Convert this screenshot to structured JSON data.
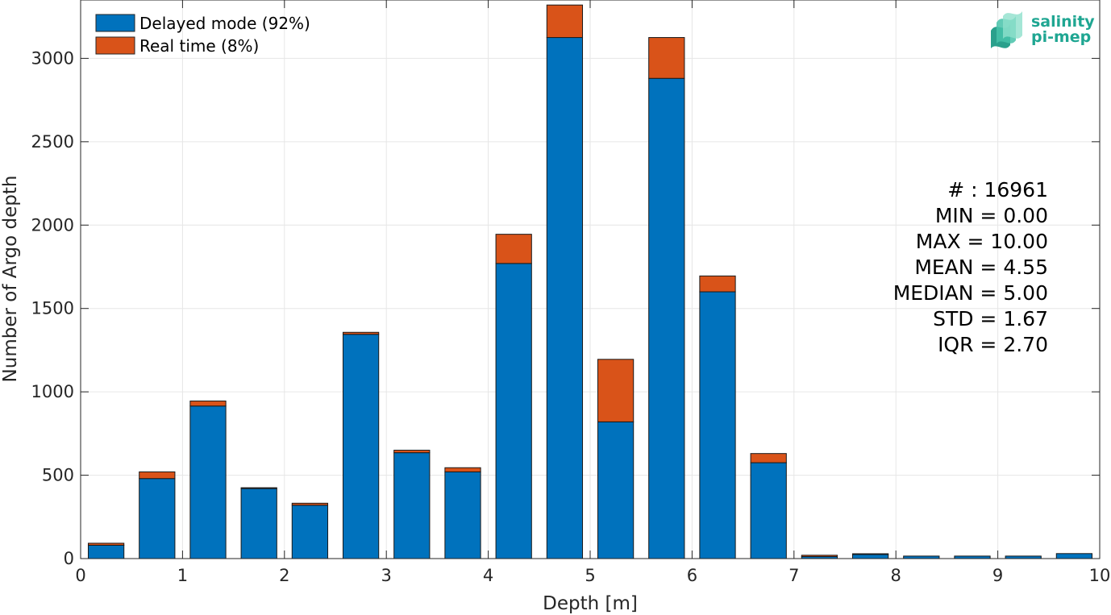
{
  "chart_data": {
    "type": "bar",
    "stacked": true,
    "xlabel": "Depth [m]",
    "ylabel": "Number of Argo depth",
    "xlim": [
      0,
      10
    ],
    "ylim": [
      0,
      3350
    ],
    "xticks": [
      "0",
      "1",
      "2",
      "3",
      "4",
      "5",
      "6",
      "7",
      "8",
      "9",
      "10"
    ],
    "yticks": [
      "0",
      "500",
      "1000",
      "1500",
      "2000",
      "2500",
      "3000"
    ],
    "grid": true,
    "legend_position": "top-left",
    "bin_centers": [
      0.25,
      0.75,
      1.25,
      1.75,
      2.25,
      2.75,
      3.25,
      3.75,
      4.25,
      4.75,
      5.25,
      5.75,
      6.25,
      6.75,
      7.25,
      7.75,
      8.25,
      8.75,
      9.25,
      9.75
    ],
    "series": [
      {
        "name": "Delayed mode (92%)",
        "color": "#0072BD",
        "values": [
          80,
          480,
          915,
          420,
          320,
          1345,
          635,
          520,
          1770,
          3125,
          820,
          2880,
          1600,
          575,
          12,
          25,
          15,
          15,
          15,
          30
        ]
      },
      {
        "name": "Real time (8%)",
        "color": "#D95319",
        "values": [
          12,
          40,
          30,
          5,
          12,
          12,
          15,
          25,
          175,
          195,
          375,
          245,
          95,
          55,
          8,
          4,
          0,
          0,
          0,
          0
        ]
      }
    ],
    "stats": [
      "# : 16961",
      "MIN = 0.00",
      "MAX =  10.00",
      "MEAN = 4.55",
      "MEDIAN = 5.00",
      "STD = 1.67",
      "IQR = 2.70"
    ]
  },
  "logo": {
    "line1": "salinity",
    "line2": "pi-mep"
  }
}
